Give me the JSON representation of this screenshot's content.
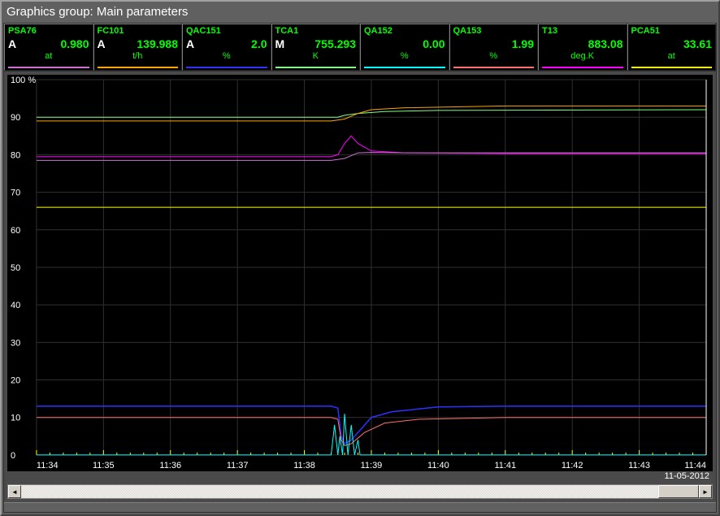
{
  "title": "Graphics group: Main parameters",
  "date": "11-05-2012",
  "params": [
    {
      "tag": "PSA76",
      "mode": "A",
      "value": "0.980",
      "unit": "at",
      "color": "#d070d0"
    },
    {
      "tag": "FC101",
      "mode": "A",
      "value": "139.988",
      "unit": "t/h",
      "color": "#ffa500"
    },
    {
      "tag": "QAC151",
      "mode": "A",
      "value": "2.0",
      "unit": "%",
      "color": "#3030ff"
    },
    {
      "tag": "TCA1",
      "mode": "M",
      "value": "755.293",
      "unit": "K",
      "color": "#80ff80"
    },
    {
      "tag": "QA152",
      "mode": "",
      "value": "0.00",
      "unit": "%",
      "color": "#00ffff"
    },
    {
      "tag": "QA153",
      "mode": "",
      "value": "1.99",
      "unit": "%",
      "color": "#ff7070"
    },
    {
      "tag": "T13",
      "mode": "",
      "value": "883.08",
      "unit": "deg.K",
      "color": "#ff00ff"
    },
    {
      "tag": "PCA51",
      "mode": "",
      "value": "33.61",
      "unit": "at",
      "color": "#ffff00"
    }
  ],
  "chart": {
    "background": "#000000",
    "grid_color": "#303030",
    "axis_color": "#ffffff",
    "ylim": [
      0,
      100
    ],
    "ytick_step": 10,
    "ylabel_suffix": "%",
    "x_labels": [
      "11:34",
      "11:35",
      "11:36",
      "11:37",
      "11:38",
      "11:39",
      "11:40",
      "11:41",
      "11:42",
      "11:43",
      "11:44"
    ],
    "tick_mark_color": "#ffff00",
    "series": [
      {
        "color": "#80ff80",
        "width": 1,
        "points": [
          [
            0,
            90
          ],
          [
            44,
            90
          ],
          [
            45,
            90
          ],
          [
            46,
            90.5
          ],
          [
            48,
            91
          ],
          [
            52,
            91.5
          ],
          [
            60,
            91.8
          ],
          [
            100,
            92
          ]
        ]
      },
      {
        "color": "#ffa500",
        "width": 1,
        "points": [
          [
            0,
            89
          ],
          [
            44,
            89
          ],
          [
            46,
            89.5
          ],
          [
            48,
            91
          ],
          [
            50,
            92
          ],
          [
            55,
            92.5
          ],
          [
            70,
            93
          ],
          [
            100,
            93
          ]
        ]
      },
      {
        "color": "#ff00ff",
        "width": 1,
        "points": [
          [
            0,
            79.5
          ],
          [
            44,
            79.5
          ],
          [
            45,
            80
          ],
          [
            46,
            83
          ],
          [
            47,
            85
          ],
          [
            48,
            83
          ],
          [
            50,
            81
          ],
          [
            55,
            80.5
          ],
          [
            70,
            80.3
          ],
          [
            100,
            80.3
          ]
        ]
      },
      {
        "color": "#d070d0",
        "width": 1,
        "points": [
          [
            0,
            78.5
          ],
          [
            44,
            78.5
          ],
          [
            46,
            79
          ],
          [
            48,
            80.5
          ],
          [
            50,
            80.6
          ],
          [
            55,
            80.5
          ],
          [
            100,
            80.5
          ]
        ]
      },
      {
        "color": "#ffff00",
        "width": 1,
        "points": [
          [
            0,
            66
          ],
          [
            100,
            66
          ]
        ]
      },
      {
        "color": "#3030ff",
        "width": 1.5,
        "points": [
          [
            0,
            13
          ],
          [
            44,
            13
          ],
          [
            45,
            12.5
          ],
          [
            45.5,
            5
          ],
          [
            46,
            3
          ],
          [
            47,
            4
          ],
          [
            48,
            6
          ],
          [
            50,
            10
          ],
          [
            53,
            11.5
          ],
          [
            60,
            12.8
          ],
          [
            70,
            13
          ],
          [
            100,
            13
          ]
        ]
      },
      {
        "color": "#ff7070",
        "width": 1,
        "points": [
          [
            0,
            10
          ],
          [
            44,
            10
          ],
          [
            45,
            9.5
          ],
          [
            45.5,
            4
          ],
          [
            46,
            2.5
          ],
          [
            47,
            3
          ],
          [
            49,
            6
          ],
          [
            52,
            8.5
          ],
          [
            57,
            9.5
          ],
          [
            70,
            10
          ],
          [
            100,
            10
          ]
        ]
      },
      {
        "color": "#00ffff",
        "width": 1,
        "points": [
          [
            0,
            0
          ],
          [
            44,
            0
          ],
          [
            44.5,
            8
          ],
          [
            45,
            0
          ],
          [
            45.3,
            5
          ],
          [
            45.7,
            0
          ],
          [
            46,
            11
          ],
          [
            46.5,
            0
          ],
          [
            47,
            8
          ],
          [
            47.5,
            0
          ],
          [
            48,
            4
          ],
          [
            48.3,
            0
          ],
          [
            100,
            0
          ]
        ]
      }
    ]
  }
}
